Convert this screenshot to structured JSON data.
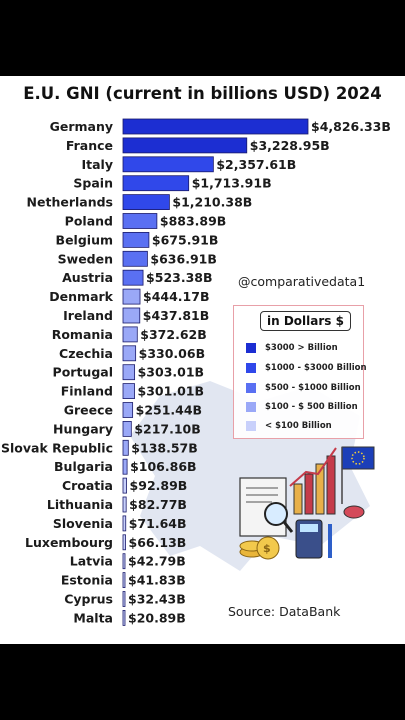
{
  "chart_data": {
    "type": "bar",
    "orientation": "horizontal",
    "title": "E.U. GNI (current in billions USD) 2024",
    "categories": [
      "Germany",
      "France",
      "Italy",
      "Spain",
      "Netherlands",
      "Poland",
      "Belgium",
      "Sweden",
      "Austria",
      "Denmark",
      "Ireland",
      "Romania",
      "Czechia",
      "Portugal",
      "Finland",
      "Greece",
      "Hungary",
      "Slovak Republic",
      "Bulgaria",
      "Croatia",
      "Lithuania",
      "Slovenia",
      "Luxembourg",
      "Latvia",
      "Estonia",
      "Cyprus",
      "Malta"
    ],
    "values": [
      4826.33,
      3228.95,
      2357.61,
      1713.91,
      1210.38,
      883.89,
      675.91,
      636.91,
      523.38,
      444.17,
      437.81,
      372.62,
      330.06,
      303.01,
      301.01,
      251.44,
      217.1,
      138.57,
      106.86,
      92.89,
      82.77,
      71.64,
      66.13,
      42.79,
      41.83,
      32.43,
      20.89
    ],
    "value_labels": [
      "$4,826.33B",
      "$3,228.95B",
      "$2,357.61B",
      "$1,713.91B",
      "$1,210.38B",
      "$883.89B",
      "$675.91B",
      "$636.91B",
      "$523.38B",
      "$444.17B",
      "$437.81B",
      "$372.62B",
      "$330.06B",
      "$303.01B",
      "$301.01B",
      "$251.44B",
      "$217.10B",
      "$138.57B",
      "$106.86B",
      "$92.89B",
      "$82.77B",
      "$71.64B",
      "$66.13B",
      "$42.79B",
      "$41.83B",
      "$32.43B",
      "$20.89B"
    ],
    "xlim": [
      0,
      4826.33
    ],
    "grid": false,
    "legend_position": "right"
  },
  "legend": {
    "title": "in Dollars $",
    "items": [
      {
        "label": "$3000 > Billion",
        "color": "#1c2ed2"
      },
      {
        "label": "$1000 - $3000 Billion",
        "color": "#3048ea"
      },
      {
        "label": "$500 - $1000 Billion",
        "color": "#5a70f2"
      },
      {
        "label": "$100 - $ 500 Billion",
        "color": "#9aa8f7"
      },
      {
        "label": "< $100 Billion",
        "color": "#c8d0fb"
      }
    ]
  },
  "handle": "@comparativedata1",
  "source": "Source: DataBank"
}
